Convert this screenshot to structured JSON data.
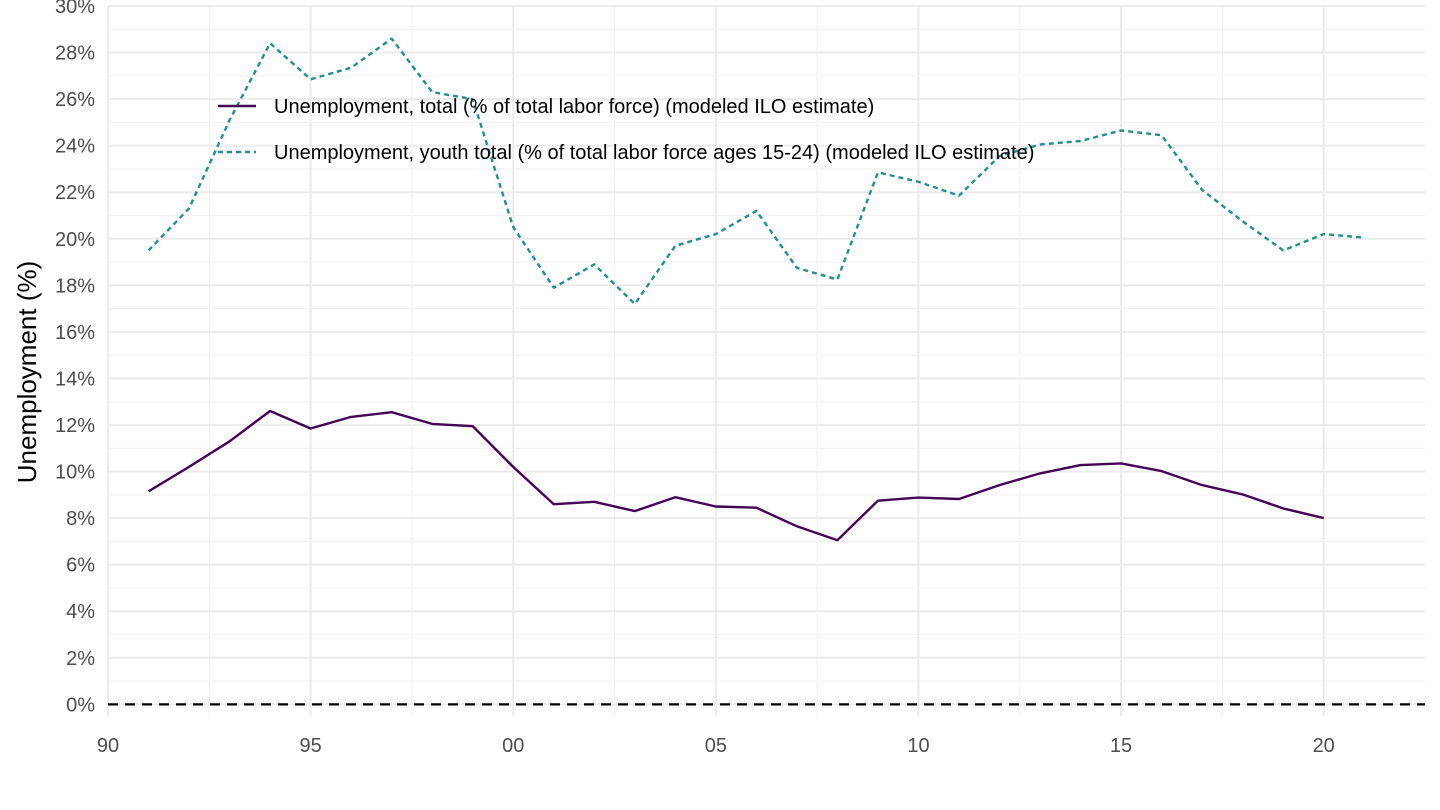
{
  "chart_data": {
    "type": "line",
    "title": "",
    "xlabel": "",
    "ylabel": "Unemployment (%)",
    "xlim": [
      1990,
      2022.5
    ],
    "ylim": [
      -0.5,
      30
    ],
    "x_ticks": [
      1990,
      1995,
      2000,
      2005,
      2010,
      2015,
      2020
    ],
    "x_tick_labels": [
      "90",
      "95",
      "00",
      "05",
      "10",
      "15",
      "20"
    ],
    "y_ticks": [
      0,
      2,
      4,
      6,
      8,
      10,
      12,
      14,
      16,
      18,
      20,
      22,
      24,
      26,
      28,
      30
    ],
    "y_tick_labels": [
      "0%",
      "2%",
      "4%",
      "6%",
      "8%",
      "10%",
      "12%",
      "14%",
      "16%",
      "18%",
      "20%",
      "22%",
      "24%",
      "26%",
      "28%",
      "30%"
    ],
    "grid": true,
    "legend_position": "top-left inside",
    "reference_line": {
      "y": 0,
      "style": "dashed",
      "color": "#000000"
    },
    "series": [
      {
        "name": "Unemployment, total (% of total labor force) (modeled ILO estimate)",
        "color": "#440154",
        "dash": "solid",
        "x": [
          1991,
          1992,
          1993,
          1994,
          1995,
          1996,
          1997,
          1998,
          1999,
          2000,
          2001,
          2002,
          2003,
          2004,
          2005,
          2006,
          2007,
          2008,
          2009,
          2010,
          2011,
          2012,
          2013,
          2014,
          2015,
          2016,
          2017,
          2018,
          2019,
          2020
        ],
        "values": [
          9.15,
          10.2,
          11.3,
          12.6,
          11.85,
          12.35,
          12.55,
          12.05,
          11.95,
          10.2,
          8.6,
          8.7,
          8.3,
          8.9,
          8.5,
          8.45,
          7.65,
          7.05,
          8.75,
          8.88,
          8.82,
          9.42,
          9.92,
          10.28,
          10.35,
          10.02,
          9.42,
          9.02,
          8.42,
          8.0
        ]
      },
      {
        "name": "Unemployment, youth total (% of total labor force ages 15-24) (modeled ILO estimate)",
        "color": "#21908d",
        "dash": "dotted",
        "x": [
          1991,
          1992,
          1993,
          1994,
          1995,
          1996,
          1997,
          1998,
          1999,
          2000,
          2001,
          2002,
          2003,
          2004,
          2005,
          2006,
          2007,
          2008,
          2009,
          2010,
          2011,
          2012,
          2013,
          2014,
          2015,
          2016,
          2017,
          2018,
          2019,
          2020,
          2021
        ],
        "values": [
          19.5,
          21.3,
          25.1,
          28.4,
          26.85,
          27.35,
          28.6,
          26.3,
          26.0,
          20.5,
          17.9,
          18.9,
          17.2,
          19.7,
          20.2,
          21.2,
          18.75,
          18.25,
          22.85,
          22.45,
          21.85,
          23.55,
          24.05,
          24.2,
          24.65,
          24.45,
          22.1,
          20.75,
          19.5,
          20.2,
          20.05
        ]
      }
    ]
  }
}
